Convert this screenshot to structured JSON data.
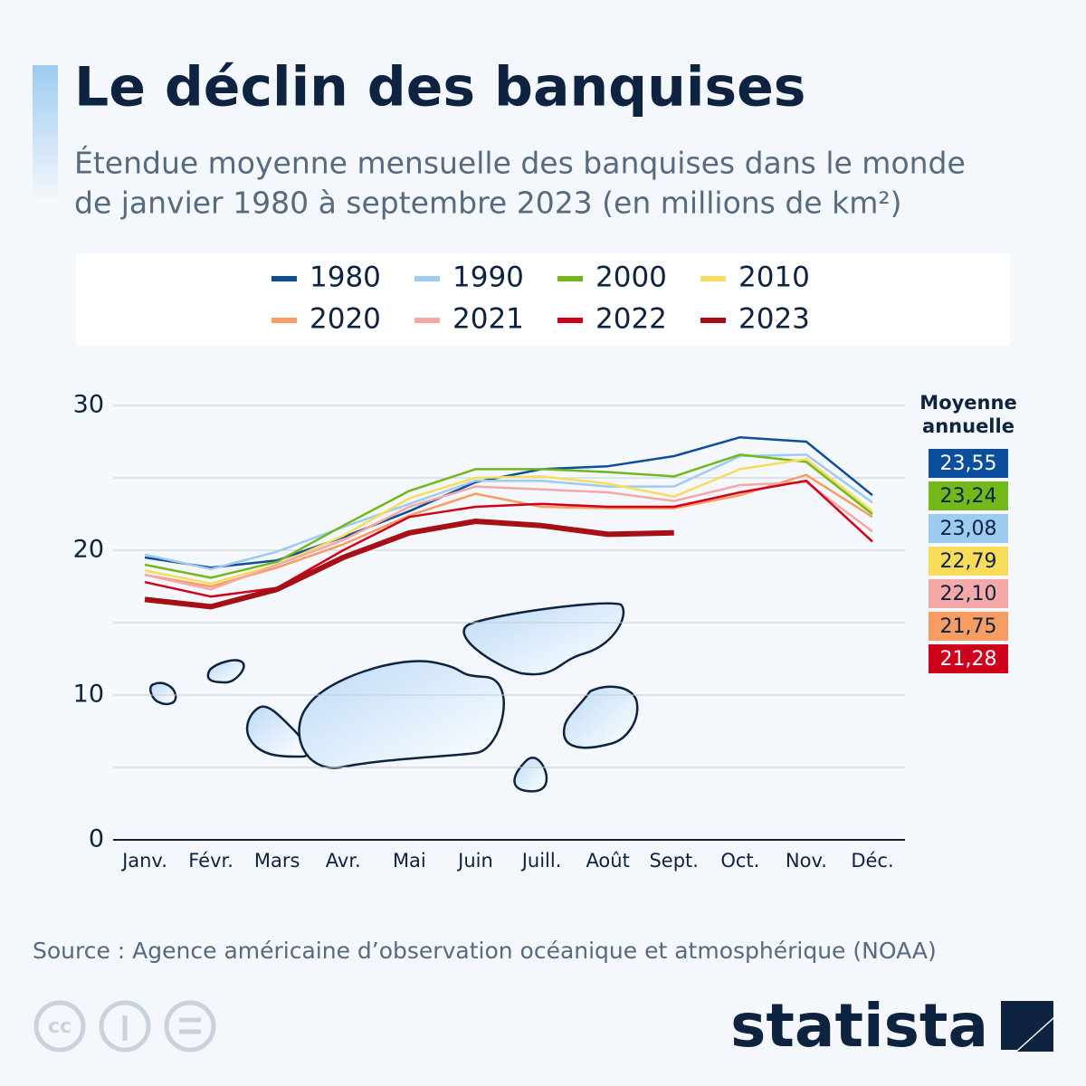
{
  "chart_data": {
    "type": "line",
    "title": "Le déclin des banquises",
    "subtitle": [
      "Étendue moyenne mensuelle des banquises dans le monde",
      "de janvier 1980 à septembre 2023 (en millions de km²)"
    ],
    "categories": [
      "Janv.",
      "Févr.",
      "Mars",
      "Avr.",
      "Mai",
      "Juin",
      "Juill.",
      "Août",
      "Sept.",
      "Oct.",
      "Nov.",
      "Déc."
    ],
    "series": [
      {
        "name": "1980",
        "color": "#0b4f9c",
        "values": [
          19.5,
          18.8,
          19.3,
          20.9,
          22.7,
          24.7,
          25.6,
          25.8,
          26.5,
          27.8,
          27.5,
          23.8
        ]
      },
      {
        "name": "1990",
        "color": "#9ecbf0",
        "values": [
          19.7,
          18.7,
          19.9,
          21.6,
          23.2,
          24.8,
          24.8,
          24.4,
          24.4,
          26.5,
          26.6,
          23.3
        ]
      },
      {
        "name": "2000",
        "color": "#72b81b",
        "values": [
          19.0,
          18.1,
          19.2,
          21.7,
          24.1,
          25.6,
          25.6,
          25.4,
          25.1,
          26.6,
          26.1,
          22.5
        ]
      },
      {
        "name": "2010",
        "color": "#f8dc5a",
        "values": [
          18.6,
          17.7,
          19.0,
          21.0,
          23.6,
          25.0,
          25.1,
          24.6,
          23.7,
          25.6,
          26.3,
          22.7
        ]
      },
      {
        "name": "2020",
        "color": "#f79d63",
        "values": [
          18.3,
          17.5,
          18.8,
          20.4,
          22.4,
          23.9,
          23.0,
          22.9,
          22.9,
          23.8,
          25.2,
          22.3
        ]
      },
      {
        "name": "2021",
        "color": "#f5a8a8",
        "values": [
          18.3,
          17.3,
          19.0,
          20.7,
          23.0,
          24.4,
          24.2,
          24.0,
          23.4,
          24.5,
          24.7,
          21.3
        ]
      },
      {
        "name": "2022",
        "color": "#d0021b",
        "values": [
          17.8,
          16.8,
          17.4,
          20.0,
          22.3,
          23.0,
          23.2,
          23.0,
          23.0,
          24.0,
          24.8,
          20.6
        ]
      },
      {
        "name": "2023",
        "color": "#a50f15",
        "values": [
          16.6,
          16.1,
          17.3,
          19.5,
          21.2,
          22.0,
          21.7,
          21.1,
          21.2,
          null,
          null,
          null
        ]
      }
    ],
    "ylim": [
      0,
      30
    ],
    "yticks": [
      0,
      10,
      20,
      30
    ],
    "minor_grid": [
      5,
      15,
      25
    ],
    "grid": true,
    "annual_average": {
      "title": [
        "Moyenne",
        "annuelle"
      ],
      "items": [
        {
          "value": 23.55,
          "label": "23,55",
          "color": "#0b4f9c",
          "text_color": "#ffffff"
        },
        {
          "value": 23.24,
          "label": "23,24",
          "color": "#72b81b",
          "text_color": "#0d2340"
        },
        {
          "value": 23.08,
          "label": "23,08",
          "color": "#9ecbf0",
          "text_color": "#0d2340"
        },
        {
          "value": 22.79,
          "label": "22,79",
          "color": "#f8dc5a",
          "text_color": "#0d2340"
        },
        {
          "value": 22.1,
          "label": "22,10",
          "color": "#f5a8a8",
          "text_color": "#0d2340"
        },
        {
          "value": 21.75,
          "label": "21,75",
          "color": "#f79d63",
          "text_color": "#0d2340"
        },
        {
          "value": 21.28,
          "label": "21,28",
          "color": "#d0021b",
          "text_color": "#ffffff"
        }
      ]
    },
    "source": "Source : Agence américaine d’observation océanique et atmosphérique (NOAA)",
    "brand": "statista"
  }
}
